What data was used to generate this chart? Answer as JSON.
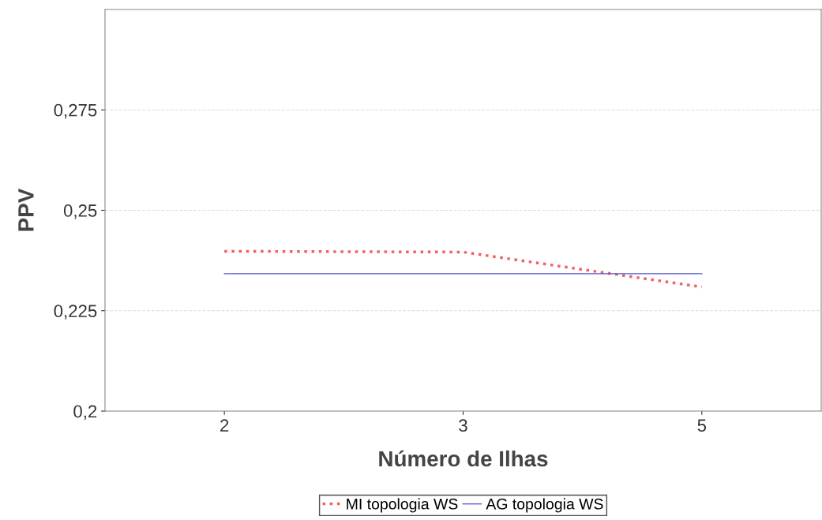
{
  "chart_data": {
    "type": "line",
    "xlabel": "Número de Ilhas",
    "ylabel": "PPV",
    "categories": [
      "2",
      "3",
      "5"
    ],
    "series": [
      {
        "name": "MI topologia WS",
        "color": "#f06060",
        "line_style": "dotted",
        "values": [
          0.2398,
          0.2396,
          0.2309
        ]
      },
      {
        "name": "AG topologia WS",
        "color": "#5555cc",
        "line_style": "solid",
        "values": [
          0.2342,
          0.2342,
          0.2342
        ]
      }
    ],
    "ylim": [
      0.2,
      0.3
    ],
    "yticks": [
      {
        "value": 0.2,
        "label": "0,2"
      },
      {
        "value": 0.225,
        "label": "0,225"
      },
      {
        "value": 0.25,
        "label": "0,25"
      },
      {
        "value": 0.275,
        "label": "0,275"
      }
    ],
    "grid": "y",
    "legend": "bottom"
  }
}
